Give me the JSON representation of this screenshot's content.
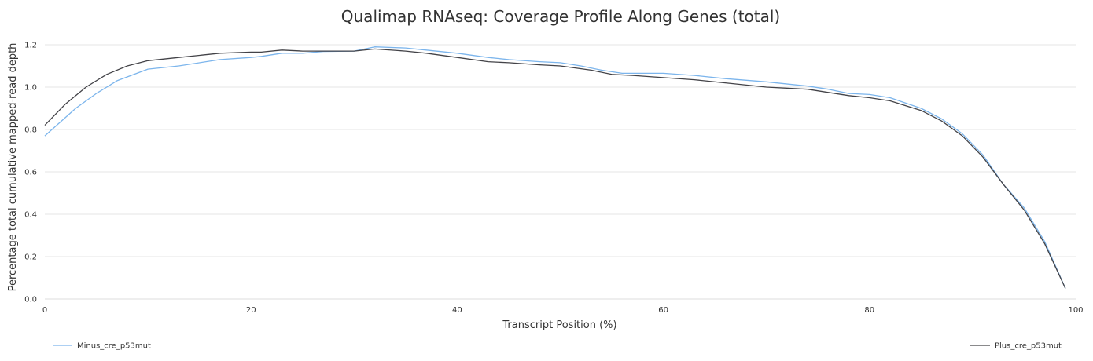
{
  "chart_data": {
    "type": "line",
    "title": "Qualimap RNAseq: Coverage Profile Along Genes (total)",
    "xlabel": "Transcript Position (%)",
    "ylabel": "Percentage total cumulative mapped-read depth",
    "xlim": [
      0,
      100
    ],
    "ylim": [
      0,
      1.3
    ],
    "x_ticks": [
      "0",
      "20",
      "40",
      "60",
      "80",
      "100"
    ],
    "y_ticks": [
      "0.0",
      "0.2",
      "0.4",
      "0.6",
      "0.8",
      "1.0",
      "1.2"
    ],
    "grid": true,
    "legend_placement": "bottom",
    "series": [
      {
        "name": "Minus_cre_p53mut",
        "color": "#7cb5ec",
        "x": [
          0,
          3,
          5,
          7,
          10,
          13,
          17,
          20,
          21,
          23,
          25,
          27,
          30,
          32,
          35,
          37,
          40,
          43,
          45,
          48,
          50,
          52,
          54,
          56,
          60,
          63,
          66,
          70,
          74,
          76,
          78,
          80,
          82,
          85,
          87,
          89,
          91,
          93,
          95,
          97,
          99
        ],
        "y": [
          0.77,
          0.9,
          0.97,
          1.03,
          1.085,
          1.1,
          1.13,
          1.14,
          1.145,
          1.16,
          1.16,
          1.168,
          1.17,
          1.19,
          1.185,
          1.175,
          1.16,
          1.14,
          1.13,
          1.12,
          1.115,
          1.1,
          1.08,
          1.065,
          1.065,
          1.055,
          1.04,
          1.025,
          1.005,
          0.99,
          0.97,
          0.965,
          0.95,
          0.9,
          0.85,
          0.78,
          0.68,
          0.54,
          0.43,
          0.27,
          0.05
        ]
      },
      {
        "name": "Plus_cre_p53mut",
        "color": "#434348",
        "x": [
          0,
          2,
          4,
          6,
          8,
          10,
          13,
          17,
          20,
          21,
          23,
          25,
          27,
          30,
          32,
          35,
          37,
          40,
          43,
          45,
          48,
          50,
          53,
          55,
          57,
          60,
          63,
          66,
          70,
          74,
          76,
          78,
          80,
          82,
          85,
          87,
          89,
          91,
          93,
          95,
          97,
          99
        ],
        "y": [
          0.82,
          0.92,
          1.0,
          1.06,
          1.1,
          1.125,
          1.14,
          1.16,
          1.165,
          1.165,
          1.175,
          1.17,
          1.17,
          1.17,
          1.18,
          1.17,
          1.16,
          1.14,
          1.12,
          1.115,
          1.105,
          1.1,
          1.08,
          1.06,
          1.055,
          1.045,
          1.035,
          1.02,
          1.0,
          0.99,
          0.975,
          0.96,
          0.95,
          0.935,
          0.89,
          0.84,
          0.77,
          0.67,
          0.54,
          0.42,
          0.26,
          0.05
        ]
      }
    ]
  }
}
